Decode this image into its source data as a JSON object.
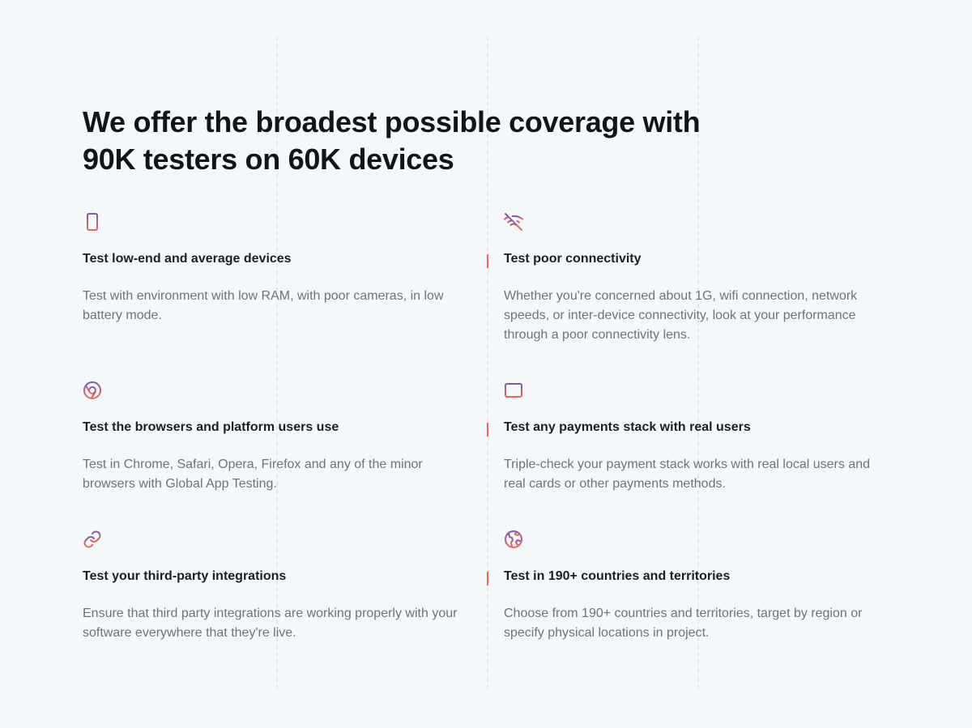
{
  "heading": {
    "line1": "We offer the broadest possible coverage with",
    "line2": "90K testers on 60K devices"
  },
  "colors": {
    "gradient_start": "#7b5aa6",
    "gradient_end": "#f4645a",
    "accent_marker": "#f36459"
  },
  "features": [
    {
      "icon": "smartphone-icon",
      "title": "Test low-end and average devices",
      "description": "Test with environment with low RAM, with poor cameras, in low battery mode."
    },
    {
      "icon": "wifi-off-icon",
      "title": "Test poor connectivity",
      "description": "Whether you're concerned about 1G, wifi connection, network speeds, or inter-device connectivity, look at your performance through a poor connectivity lens."
    },
    {
      "icon": "chrome-icon",
      "title": "Test the browsers and platform users use",
      "description": "Test in Chrome, Safari, Opera, Firefox and any of the minor browsers with Global App Testing."
    },
    {
      "icon": "credit-card-icon",
      "title": "Test any payments stack with real users",
      "description": "Triple-check your payment stack works with real local users and real cards or other payments methods."
    },
    {
      "icon": "link-icon",
      "title": "Test your third-party integrations",
      "description": "Ensure that third party integrations are working properly with your software everywhere that they're live."
    },
    {
      "icon": "globe-icon",
      "title": "Test in 190+ countries and territories",
      "description": "Choose from 190+ countries and territories, target by region or specify physical locations in project."
    }
  ]
}
